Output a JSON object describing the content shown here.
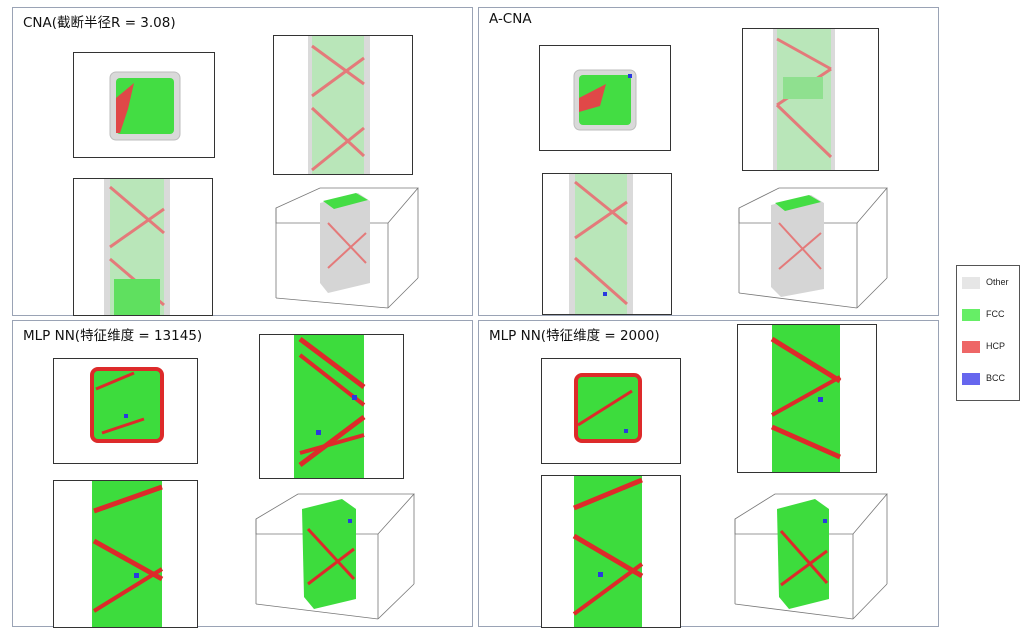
{
  "panels": [
    {
      "title": "CNA(截断半径R = 3.08)",
      "method": "cna"
    },
    {
      "title": "A-CNA",
      "method": "cna"
    },
    {
      "title": "MLP NN(特征维度 = 13145)",
      "method": "mlp"
    },
    {
      "title": "MLP NN(特征维度 = 2000)",
      "method": "mlp"
    }
  ],
  "legend": {
    "items": [
      {
        "label": "Other",
        "color": "#e6e6e6"
      },
      {
        "label": "FCC",
        "color": "#66ee66"
      },
      {
        "label": "HCP",
        "color": "#ee6666"
      },
      {
        "label": "BCC",
        "color": "#6666ee"
      }
    ]
  },
  "colors": {
    "other": "#d8d8d8",
    "fcc": "#3ddc3d",
    "hcp": "#dd2a2a",
    "bcc": "#2a3adf",
    "frame": "#9aa3b5"
  }
}
